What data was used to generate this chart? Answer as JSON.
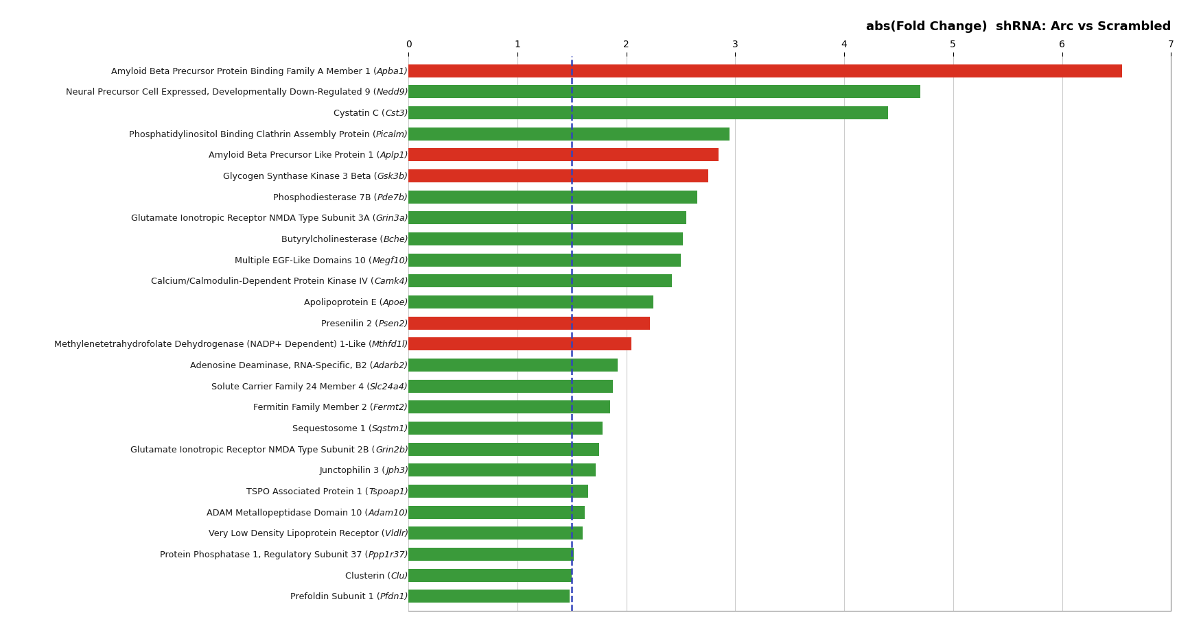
{
  "title": "abs(Fold Change)  shRNA: Arc vs Scrambled",
  "categories_plain": [
    "Amyloid Beta Precursor Protein Binding Family A Member 1 (",
    "Neural Precursor Cell Expressed, Developmentally Down-Regulated 9 (",
    "Cystatin C (",
    "Phosphatidylinositol Binding Clathrin Assembly Protein (",
    "Amyloid Beta Precursor Like Protein 1 (",
    "Glycogen Synthase Kinase 3 Beta (",
    "Phosphodiesterase 7B (",
    "Glutamate Ionotropic Receptor NMDA Type Subunit 3A (",
    "Butyrylcholinesterase (",
    "Multiple EGF-Like Domains 10 (",
    "Calcium/Calmodulin-Dependent Protein Kinase IV (",
    "Apolipoprotein E (",
    "Presenilin 2 (",
    "Methylenetetrahydrofolate Dehydrogenase (NADP+ Dependent) 1-Like (",
    "Adenosine Deaminase, RNA-Specific, B2 (",
    "Solute Carrier Family 24 Member 4 (",
    "Fermitin Family Member 2 (",
    "Sequestosome 1 (",
    "Glutamate Ionotropic Receptor NMDA Type Subunit 2B (",
    "Junctophilin 3 (",
    "TSPO Associated Protein 1 (",
    "ADAM Metallopeptidase Domain 10 (",
    "Very Low Density Lipoprotein Receptor (",
    "Protein Phosphatase 1, Regulatory Subunit 37 (",
    "Clusterin (",
    "Prefoldin Subunit 1 ("
  ],
  "categories_italic": [
    "Apba1",
    "Nedd9",
    "Cst3",
    "Picalm",
    "Aplp1",
    "Gsk3b",
    "Pde7b",
    "Grin3a",
    "Bche",
    "Megf10",
    "Camk4",
    "Apoe",
    "Psen2",
    "Mthfd1l",
    "Adarb2",
    "Slc24a4",
    "Fermt2",
    "Sqstm1",
    "Grin2b",
    "Jph3",
    "Tspoap1",
    "Adam10",
    "Vldlr",
    "Ppp1r37",
    "Clu",
    "Pfdn1"
  ],
  "values": [
    6.55,
    4.7,
    4.4,
    2.95,
    2.85,
    2.75,
    2.65,
    2.55,
    2.52,
    2.5,
    2.42,
    2.25,
    2.22,
    2.05,
    1.92,
    1.88,
    1.85,
    1.78,
    1.75,
    1.72,
    1.65,
    1.62,
    1.6,
    1.52,
    1.5,
    1.48
  ],
  "colors": [
    "red",
    "green",
    "green",
    "green",
    "red",
    "red",
    "green",
    "green",
    "green",
    "green",
    "green",
    "green",
    "red",
    "red",
    "green",
    "green",
    "green",
    "green",
    "green",
    "green",
    "green",
    "green",
    "green",
    "green",
    "green",
    "green"
  ],
  "bar_color_red": "#d93020",
  "bar_color_green": "#3a9a3a",
  "vline_x": 1.5,
  "vline_color": "#3344bb",
  "xlim": [
    0,
    7
  ],
  "xticks": [
    0,
    1,
    2,
    3,
    4,
    5,
    6,
    7
  ],
  "grid_color": "#cccccc",
  "title_fontsize": 13,
  "tick_fontsize": 10,
  "label_fontsize": 9.2,
  "bar_height": 0.62
}
